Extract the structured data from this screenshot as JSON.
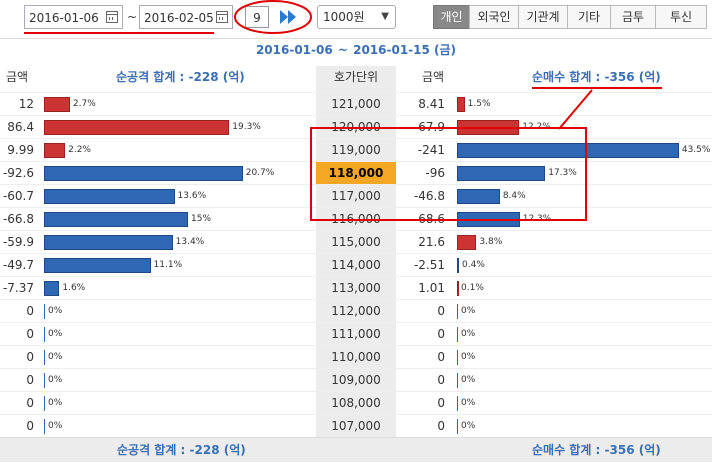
{
  "toolbar": {
    "start_date": "2016-01-06",
    "tilde": "~",
    "end_date": "2016-02-05",
    "count": "9",
    "unit_select": "1000원",
    "tabs": [
      "개인",
      "외국인",
      "기관계",
      "기타",
      "금투",
      "투신"
    ],
    "active_tab": "개인"
  },
  "period": {
    "start": "2016-01-06",
    "sep": "~",
    "end": "2016-01-15 (금)"
  },
  "header": {
    "left_amount": "금액",
    "left_sum": "순공격 합계 : -228 (억)",
    "mid": "호가단위",
    "right_amount": "금액",
    "right_sum": "순매수 합계 : -356 (억)"
  },
  "rows": [
    {
      "l_amt": "12",
      "l_pct": "2.7%",
      "l_val": 2.7,
      "l_color": "red",
      "price": "121,000",
      "r_amt": "8.41",
      "r_pct": "1.5%",
      "r_val": 1.5,
      "r_color": "red"
    },
    {
      "l_amt": "86.4",
      "l_pct": "19.3%",
      "l_val": 19.3,
      "l_color": "red",
      "price": "120,000",
      "r_amt": "67.9",
      "r_pct": "12.2%",
      "r_val": 12.2,
      "r_color": "red"
    },
    {
      "l_amt": "9.99",
      "l_pct": "2.2%",
      "l_val": 2.2,
      "l_color": "red",
      "price": "119,000",
      "r_amt": "-241",
      "r_pct": "43.5%",
      "r_val": 43.5,
      "r_color": "blue"
    },
    {
      "l_amt": "-92.6",
      "l_pct": "20.7%",
      "l_val": 20.7,
      "l_color": "blue",
      "price": "118,000",
      "r_amt": "-96",
      "r_pct": "17.3%",
      "r_val": 17.3,
      "r_color": "blue",
      "hl": true
    },
    {
      "l_amt": "-60.7",
      "l_pct": "13.6%",
      "l_val": 13.6,
      "l_color": "blue",
      "price": "117,000",
      "r_amt": "-46.8",
      "r_pct": "8.4%",
      "r_val": 8.4,
      "r_color": "blue"
    },
    {
      "l_amt": "-66.8",
      "l_pct": "15%",
      "l_val": 15,
      "l_color": "blue",
      "price": "116,000",
      "r_amt": "-68.6",
      "r_pct": "12.3%",
      "r_val": 12.3,
      "r_color": "blue"
    },
    {
      "l_amt": "-59.9",
      "l_pct": "13.4%",
      "l_val": 13.4,
      "l_color": "blue",
      "price": "115,000",
      "r_amt": "21.6",
      "r_pct": "3.8%",
      "r_val": 3.8,
      "r_color": "red"
    },
    {
      "l_amt": "-49.7",
      "l_pct": "11.1%",
      "l_val": 11.1,
      "l_color": "blue",
      "price": "114,000",
      "r_amt": "-2.51",
      "r_pct": "0.4%",
      "r_val": 0.4,
      "r_color": "blue"
    },
    {
      "l_amt": "-7.37",
      "l_pct": "1.6%",
      "l_val": 1.6,
      "l_color": "blue",
      "price": "113,000",
      "r_amt": "1.01",
      "r_pct": "0.1%",
      "r_val": 0.1,
      "r_color": "red"
    },
    {
      "l_amt": "0",
      "l_pct": "0%",
      "l_val": 0,
      "l_color": "blue",
      "price": "112,000",
      "r_amt": "0",
      "r_pct": "0%",
      "r_val": 0,
      "r_color": "blue"
    },
    {
      "l_amt": "0",
      "l_pct": "0%",
      "l_val": 0,
      "l_color": "blue",
      "price": "111,000",
      "r_amt": "0",
      "r_pct": "0%",
      "r_val": 0,
      "r_color": "blue"
    },
    {
      "l_amt": "0",
      "l_pct": "0%",
      "l_val": 0,
      "l_color": "blue",
      "price": "110,000",
      "r_amt": "0",
      "r_pct": "0%",
      "r_val": 0,
      "r_color": "blue"
    },
    {
      "l_amt": "0",
      "l_pct": "0%",
      "l_val": 0,
      "l_color": "blue",
      "price": "109,000",
      "r_amt": "0",
      "r_pct": "0%",
      "r_val": 0,
      "r_color": "blue"
    },
    {
      "l_amt": "0",
      "l_pct": "0%",
      "l_val": 0,
      "l_color": "blue",
      "price": "108,000",
      "r_amt": "0",
      "r_pct": "0%",
      "r_val": 0,
      "r_color": "blue"
    },
    {
      "l_amt": "0",
      "l_pct": "0%",
      "l_val": 0,
      "l_color": "blue",
      "price": "107,000",
      "r_amt": "0",
      "r_pct": "0%",
      "r_val": 0,
      "r_color": "blue"
    }
  ],
  "footer": {
    "left_sum": "순공격 합계 : -228 (억)",
    "right_sum": "순매수 합계 : -356 (억)"
  },
  "colors": {
    "red_bar": "#c33333",
    "blue_bar": "#2e67b3",
    "highlight": "#f5a623",
    "accent": "#3a6fb5",
    "annotation": "#e00000"
  }
}
